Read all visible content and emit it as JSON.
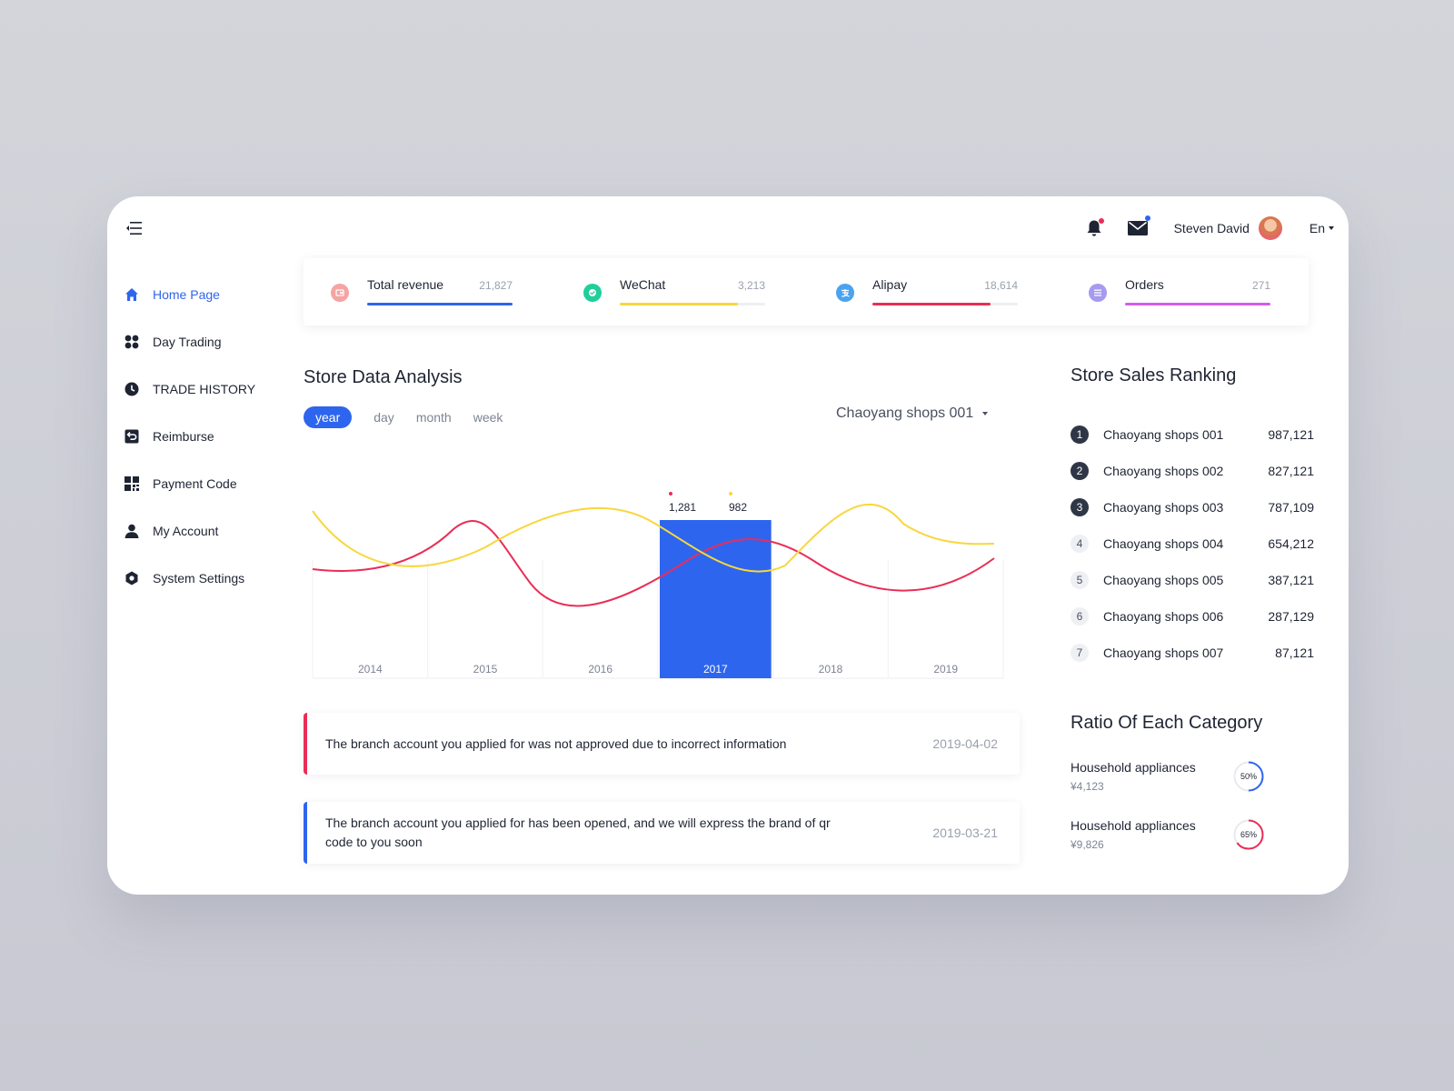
{
  "header": {
    "user_name": "Steven David",
    "language": "En",
    "icons": {
      "menu": "menu-toggle-icon",
      "notifications": "bell-icon",
      "messages": "mail-icon"
    },
    "notification_dot_color": "#ea2d57",
    "message_dot_color": "#2e65ee"
  },
  "sidebar": {
    "items": [
      {
        "label": "Home Page",
        "icon": "home-icon",
        "active": true
      },
      {
        "label": "Day Trading",
        "icon": "grid-icon",
        "active": false
      },
      {
        "label": "TRADE HISTORY",
        "icon": "clock-icon",
        "active": false
      },
      {
        "label": "Reimburse",
        "icon": "return-icon",
        "active": false
      },
      {
        "label": "Payment Code",
        "icon": "qr-code-icon",
        "active": false
      },
      {
        "label": "My Account",
        "icon": "user-icon",
        "active": false
      },
      {
        "label": "System Settings",
        "icon": "settings-icon",
        "active": false
      }
    ]
  },
  "stats": [
    {
      "title": "Total revenue",
      "value": "21,827",
      "color": "#2e65ee",
      "icon_color": "#f7a3a3",
      "progress": 1.0,
      "icon": "revenue-icon"
    },
    {
      "title": "WeChat",
      "value": "3,213",
      "color": "#f8d73c",
      "icon_color": "#1fcf9b",
      "progress": 0.81,
      "icon": "wechat-icon"
    },
    {
      "title": "Alipay",
      "value": "18,614",
      "color": "#ea2d57",
      "icon_color": "#4aa3f0",
      "progress": 0.81,
      "icon": "alipay-icon"
    },
    {
      "title": "Orders",
      "value": "271",
      "color": "#d45cf0",
      "icon_color": "#a59af0",
      "progress": 1.0,
      "icon": "orders-icon"
    }
  ],
  "analysis": {
    "title": "Store Data Analysis",
    "filters": [
      "year",
      "day",
      "month",
      "week"
    ],
    "active_filter": "year",
    "shop_selected": "Chaoyang shops 001"
  },
  "chart_data": {
    "type": "line",
    "categories": [
      "2014",
      "2015",
      "2016",
      "2017",
      "2018",
      "2019"
    ],
    "highlighted_category": "2017",
    "highlight_color": "#2e65ee",
    "series": [
      {
        "color": "#ea2d57"
      },
      {
        "color": "#f8d73c"
      }
    ],
    "tooltip": {
      "category": "2017",
      "values": [
        "1,281",
        "982"
      ]
    },
    "grid": true
  },
  "notices": [
    {
      "text": "The branch account you applied for was not approved due to incorrect information",
      "date": "2019-04-02",
      "tone": "red"
    },
    {
      "text": "The branch account you applied for has been opened, and we will express the brand of qr code to you soon",
      "date": "2019-03-21",
      "tone": "blue"
    }
  ],
  "ranking": {
    "title": "Store Sales Ranking",
    "items": [
      {
        "rank": "1",
        "name": "Chaoyang shops 001",
        "value": "987,121"
      },
      {
        "rank": "2",
        "name": "Chaoyang shops 002",
        "value": "827,121"
      },
      {
        "rank": "3",
        "name": "Chaoyang shops 003",
        "value": "787,109"
      },
      {
        "rank": "4",
        "name": "Chaoyang shops 004",
        "value": "654,212"
      },
      {
        "rank": "5",
        "name": "Chaoyang shops 005",
        "value": "387,121"
      },
      {
        "rank": "6",
        "name": "Chaoyang shops 006",
        "value": "287,129"
      },
      {
        "rank": "7",
        "name": "Chaoyang shops 007",
        "value": "87,121"
      }
    ]
  },
  "categories": {
    "title": "Ratio Of Each Category",
    "items": [
      {
        "name": "Household appliances",
        "value": "¥4,123",
        "percent_label": "50%",
        "ratio": 0.5,
        "color": "#2e65ee"
      },
      {
        "name": "Household appliances",
        "value": "¥9,826",
        "percent_label": "65%",
        "ratio": 0.65,
        "color": "#ea2d57"
      }
    ]
  }
}
